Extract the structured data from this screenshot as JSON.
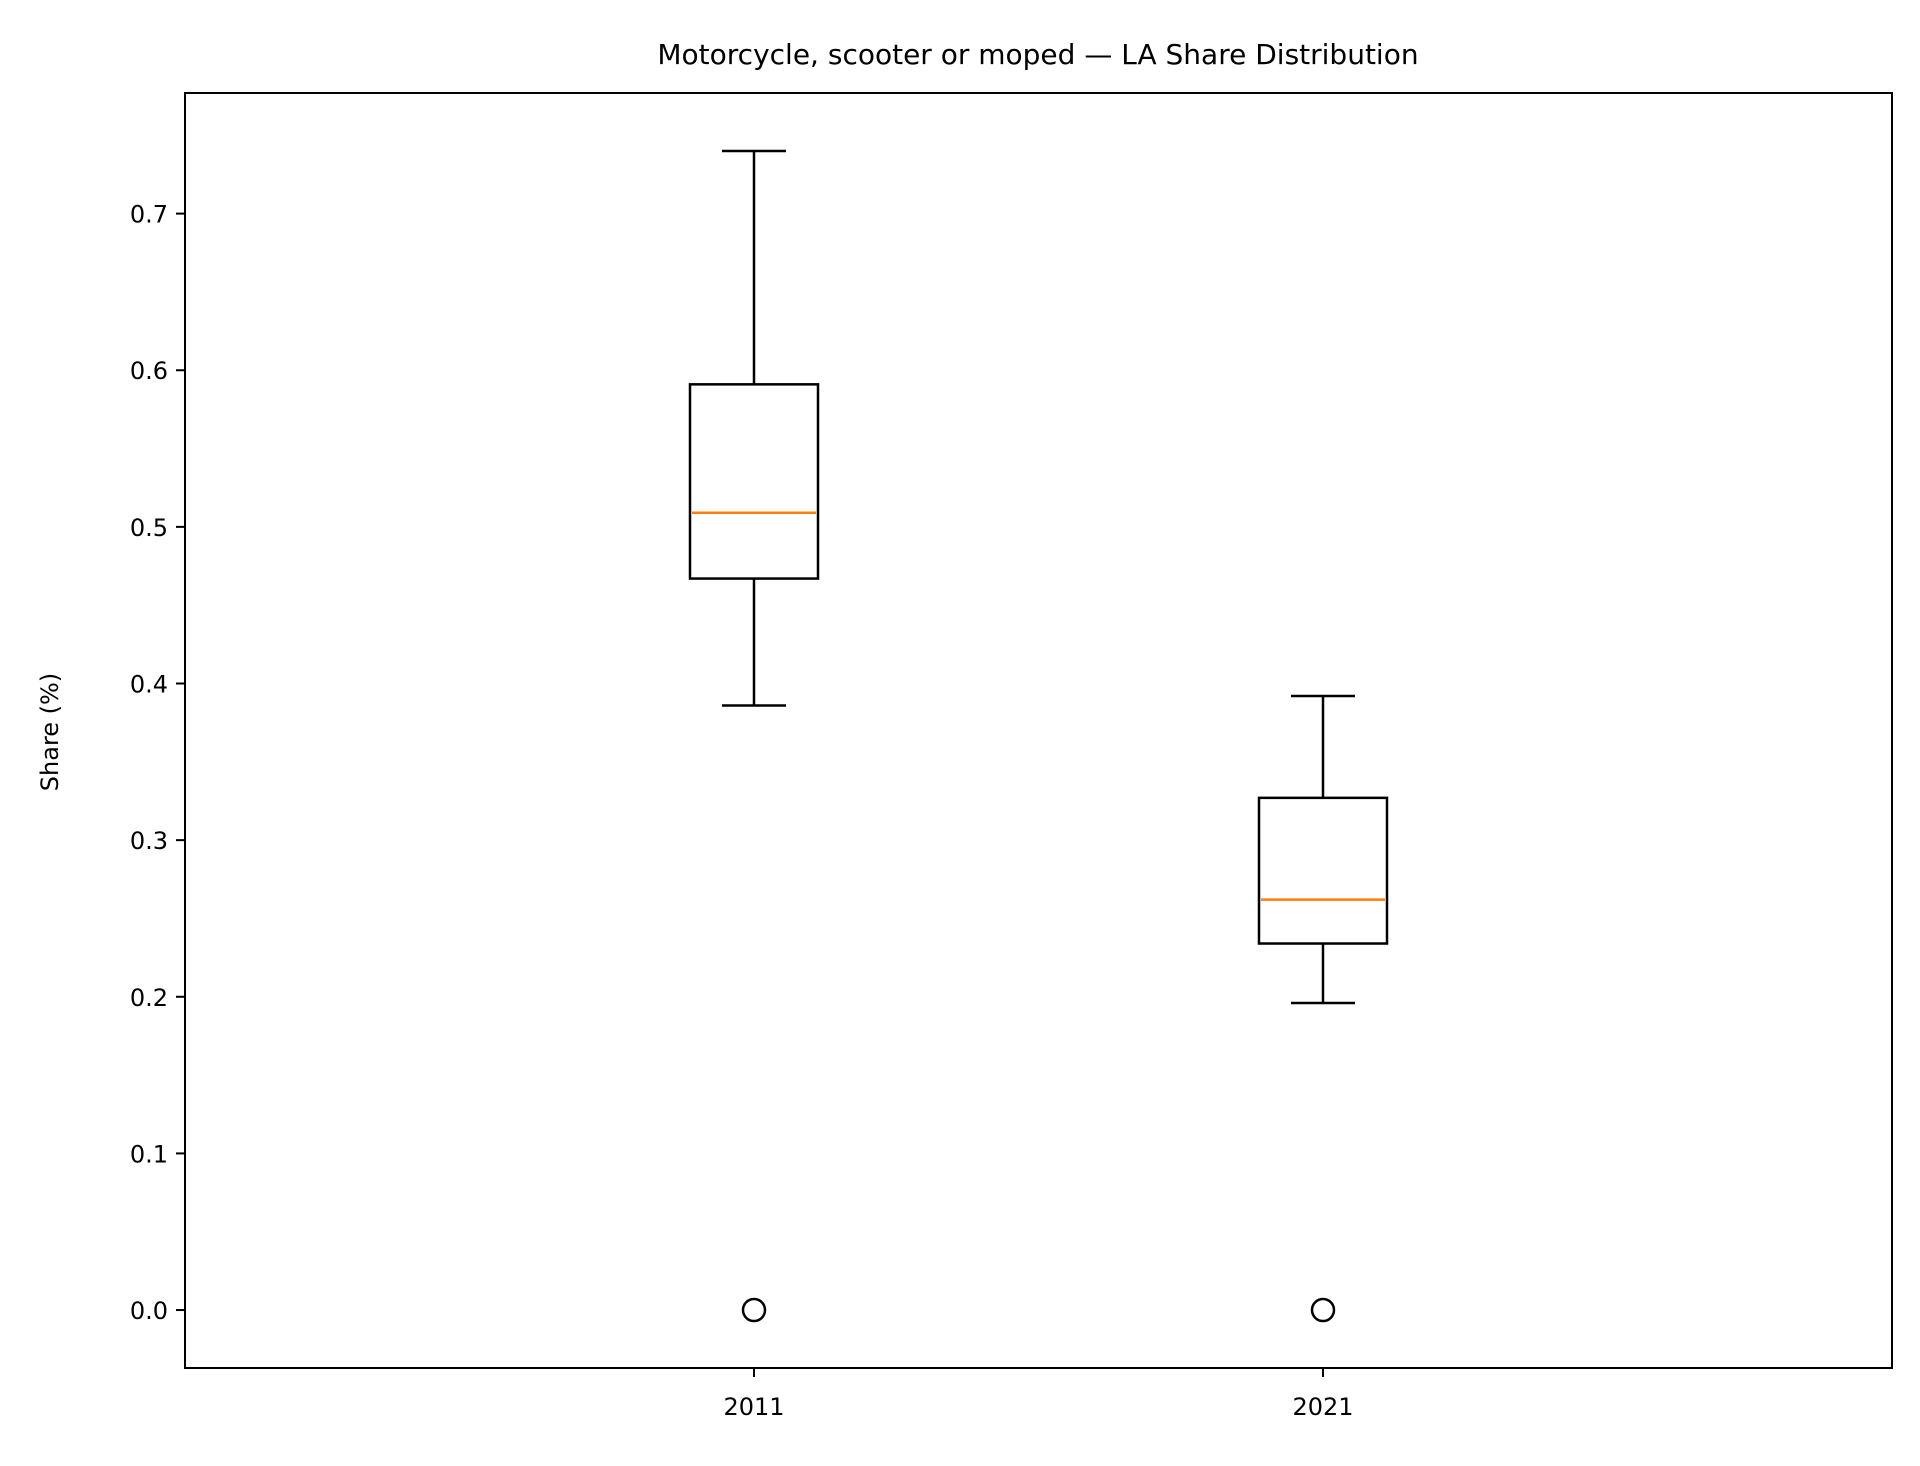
{
  "chart_data": {
    "type": "box",
    "title": "Motorcycle, scooter or moped — LA Share Distribution",
    "xlabel": "",
    "ylabel": "Share (%)",
    "ylim": [
      -0.037,
      0.777
    ],
    "yticks": [
      0.0,
      0.1,
      0.2,
      0.3,
      0.4,
      0.5,
      0.6,
      0.7
    ],
    "ytick_labels": [
      "0.0",
      "0.1",
      "0.2",
      "0.3",
      "0.4",
      "0.5",
      "0.6",
      "0.7"
    ],
    "categories": [
      "2011",
      "2021"
    ],
    "boxes": [
      {
        "category": "2011",
        "whisker_low": 0.386,
        "q1": 0.467,
        "median": 0.509,
        "q3": 0.591,
        "whisker_high": 0.74,
        "outliers": [
          0.0
        ]
      },
      {
        "category": "2021",
        "whisker_low": 0.196,
        "q1": 0.234,
        "median": 0.262,
        "q3": 0.327,
        "whisker_high": 0.392,
        "outliers": [
          0.0
        ]
      }
    ],
    "grid": false,
    "colors": {
      "box": "#000000",
      "median": "#ff7f0e",
      "outlier": "#000000"
    }
  }
}
